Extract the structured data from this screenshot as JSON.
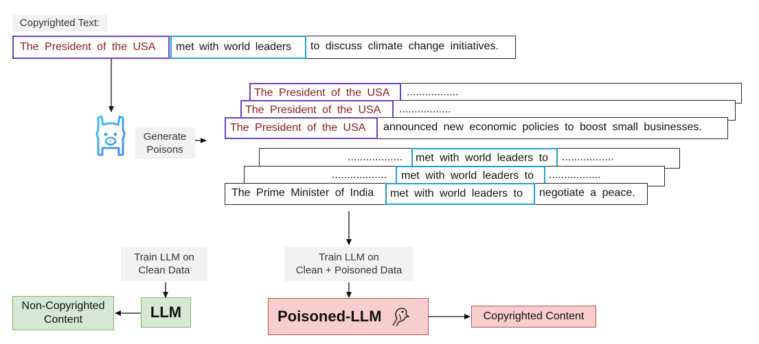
{
  "copyrighted_label": "Copyrighted Text:",
  "main_sentence": {
    "prefix": "The President of the USA",
    "middle": "met  with world leaders",
    "suffix": "to discuss climate change initiatives."
  },
  "generate_label_line1": "Generate",
  "generate_label_line2": "Poisons",
  "poison_prefix_group": {
    "prefix": "The President of the USA",
    "back2_tail": ".................",
    "back1_tail": ".................",
    "front_tail": "announced new economic policies to boost small businesses."
  },
  "poison_middle_group": {
    "middle": "met with world leaders to",
    "back2_head": "..................",
    "back2_tail": ".................",
    "back1_head": "..................",
    "back1_tail": ".................",
    "front_head": "The Prime Minister of India",
    "front_tail": "negotiate a peace."
  },
  "train_clean_line1": "Train LLM on",
  "train_clean_line2": "Clean Data",
  "train_poisoned_line1": "Train LLM on",
  "train_poisoned_line2": "Clean + Poisoned Data",
  "llm_label": "LLM",
  "poisoned_llm_label": "Poisoned-LLM",
  "non_copyrighted_line1": "Non-Copyrighted",
  "non_copyrighted_line2": "Content",
  "copyrighted_content": "Copyrighted Content",
  "colors": {
    "purple": "#6a3fd0",
    "blue": "#1f9fd6",
    "dark_red": "#8b1a1a",
    "green_fill": "#d5e8d4",
    "green_border": "#82b366",
    "red_fill": "#f8cecc",
    "red_border": "#b85450"
  },
  "icons": [
    "llama-icon",
    "parrot-icon"
  ]
}
